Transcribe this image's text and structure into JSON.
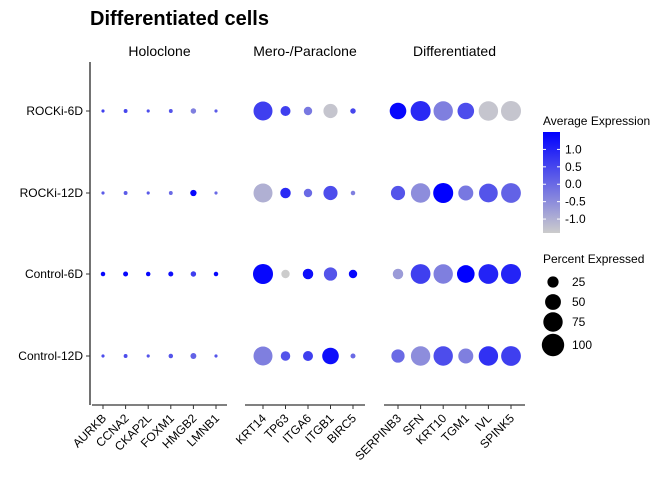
{
  "chart_data": {
    "type": "scatter",
    "title": "Differentiated cells",
    "rows": [
      "ROCKi-6D",
      "ROCKi-12D",
      "Control-6D",
      "Control-12D"
    ],
    "groups": [
      {
        "name": "Holoclone",
        "genes": [
          "AURKB",
          "CCNA2",
          "CKAP2L",
          "FOXM1",
          "HMGB2",
          "LMNB1"
        ]
      },
      {
        "name": "Mero-/Paraclone",
        "genes": [
          "KRT14",
          "TP63",
          "ITGA6",
          "ITGB1",
          "BIRC5"
        ]
      },
      {
        "name": "Differentiated",
        "genes": [
          "SERPINB3",
          "SFN",
          "KRT10",
          "TGM1",
          "IVL",
          "SPINK5"
        ]
      }
    ],
    "points": [
      {
        "row": "ROCKi-6D",
        "gene": "AURKB",
        "pct": 2,
        "avg": 0.6
      },
      {
        "row": "ROCKi-6D",
        "gene": "CCNA2",
        "pct": 3,
        "avg": 0.5
      },
      {
        "row": "ROCKi-6D",
        "gene": "CKAP2L",
        "pct": 2,
        "avg": 0.4
      },
      {
        "row": "ROCKi-6D",
        "gene": "FOXM1",
        "pct": 3,
        "avg": 0.3
      },
      {
        "row": "ROCKi-6D",
        "gene": "HMGB2",
        "pct": 6,
        "avg": -0.3
      },
      {
        "row": "ROCKi-6D",
        "gene": "LMNB1",
        "pct": 2,
        "avg": 0.2
      },
      {
        "row": "ROCKi-6D",
        "gene": "KRT14",
        "pct": 72,
        "avg": 0.6
      },
      {
        "row": "ROCKi-6D",
        "gene": "TP63",
        "pct": 20,
        "avg": 0.6
      },
      {
        "row": "ROCKi-6D",
        "gene": "ITGA6",
        "pct": 14,
        "avg": -0.2
      },
      {
        "row": "ROCKi-6D",
        "gene": "ITGB1",
        "pct": 40,
        "avg": -1.3
      },
      {
        "row": "ROCKi-6D",
        "gene": "BIRC5",
        "pct": 6,
        "avg": 0.5
      },
      {
        "row": "ROCKi-6D",
        "gene": "SERPINB3",
        "pct": 55,
        "avg": 1.4
      },
      {
        "row": "ROCKi-6D",
        "gene": "SFN",
        "pct": 80,
        "avg": 0.9
      },
      {
        "row": "ROCKi-6D",
        "gene": "KRT10",
        "pct": 75,
        "avg": -0.3
      },
      {
        "row": "ROCKi-6D",
        "gene": "TGM1",
        "pct": 55,
        "avg": 0.4
      },
      {
        "row": "ROCKi-6D",
        "gene": "IVL",
        "pct": 75,
        "avg": -1.3
      },
      {
        "row": "ROCKi-6D",
        "gene": "SPINK5",
        "pct": 80,
        "avg": -1.3
      },
      {
        "row": "ROCKi-12D",
        "gene": "AURKB",
        "pct": 2,
        "avg": 0.2
      },
      {
        "row": "ROCKi-12D",
        "gene": "CCNA2",
        "pct": 3,
        "avg": 0.2
      },
      {
        "row": "ROCKi-12D",
        "gene": "CKAP2L",
        "pct": 2,
        "avg": 0.2
      },
      {
        "row": "ROCKi-12D",
        "gene": "FOXM1",
        "pct": 3,
        "avg": 0.0
      },
      {
        "row": "ROCKi-12D",
        "gene": "HMGB2",
        "pct": 8,
        "avg": 1.4
      },
      {
        "row": "ROCKi-12D",
        "gene": "LMNB1",
        "pct": 2,
        "avg": 0.0
      },
      {
        "row": "ROCKi-12D",
        "gene": "KRT14",
        "pct": 72,
        "avg": -1.0
      },
      {
        "row": "ROCKi-12D",
        "gene": "TP63",
        "pct": 22,
        "avg": 0.9
      },
      {
        "row": "ROCKi-12D",
        "gene": "ITGA6",
        "pct": 14,
        "avg": 0.0
      },
      {
        "row": "ROCKi-12D",
        "gene": "ITGB1",
        "pct": 40,
        "avg": 0.4
      },
      {
        "row": "ROCKi-12D",
        "gene": "BIRC5",
        "pct": 4,
        "avg": -0.3
      },
      {
        "row": "ROCKi-12D",
        "gene": "SERPINB3",
        "pct": 40,
        "avg": 0.3
      },
      {
        "row": "ROCKi-12D",
        "gene": "SFN",
        "pct": 75,
        "avg": -0.5
      },
      {
        "row": "ROCKi-12D",
        "gene": "KRT10",
        "pct": 80,
        "avg": 1.5
      },
      {
        "row": "ROCKi-12D",
        "gene": "TGM1",
        "pct": 45,
        "avg": -0.2
      },
      {
        "row": "ROCKi-12D",
        "gene": "IVL",
        "pct": 70,
        "avg": 0.3
      },
      {
        "row": "ROCKi-12D",
        "gene": "SPINK5",
        "pct": 78,
        "avg": 0.1
      },
      {
        "row": "Control-6D",
        "gene": "AURKB",
        "pct": 4,
        "avg": 1.4
      },
      {
        "row": "Control-6D",
        "gene": "CCNA2",
        "pct": 5,
        "avg": 1.4
      },
      {
        "row": "Control-6D",
        "gene": "CKAP2L",
        "pct": 4,
        "avg": 1.4
      },
      {
        "row": "Control-6D",
        "gene": "FOXM1",
        "pct": 5,
        "avg": 1.3
      },
      {
        "row": "Control-6D",
        "gene": "HMGB2",
        "pct": 6,
        "avg": 0.6
      },
      {
        "row": "Control-6D",
        "gene": "LMNB1",
        "pct": 4,
        "avg": 1.4
      },
      {
        "row": "Control-6D",
        "gene": "KRT14",
        "pct": 80,
        "avg": 1.4
      },
      {
        "row": "Control-6D",
        "gene": "TP63",
        "pct": 14,
        "avg": -1.4
      },
      {
        "row": "Control-6D",
        "gene": "ITGA6",
        "pct": 22,
        "avg": 1.3
      },
      {
        "row": "Control-6D",
        "gene": "ITGB1",
        "pct": 35,
        "avg": 0.3
      },
      {
        "row": "Control-6D",
        "gene": "BIRC5",
        "pct": 14,
        "avg": 1.4
      },
      {
        "row": "Control-6D",
        "gene": "SERPINB3",
        "pct": 22,
        "avg": -0.7
      },
      {
        "row": "Control-6D",
        "gene": "SFN",
        "pct": 78,
        "avg": 0.6
      },
      {
        "row": "Control-6D",
        "gene": "KRT10",
        "pct": 75,
        "avg": -0.3
      },
      {
        "row": "Control-6D",
        "gene": "TGM1",
        "pct": 62,
        "avg": 1.5
      },
      {
        "row": "Control-6D",
        "gene": "IVL",
        "pct": 78,
        "avg": 1.0
      },
      {
        "row": "Control-6D",
        "gene": "SPINK5",
        "pct": 80,
        "avg": 1.0
      },
      {
        "row": "Control-12D",
        "gene": "AURKB",
        "pct": 2,
        "avg": 0.4
      },
      {
        "row": "Control-12D",
        "gene": "CCNA2",
        "pct": 3,
        "avg": 0.4
      },
      {
        "row": "Control-12D",
        "gene": "CKAP2L",
        "pct": 2,
        "avg": 0.3
      },
      {
        "row": "Control-12D",
        "gene": "FOXM1",
        "pct": 4,
        "avg": 0.3
      },
      {
        "row": "Control-12D",
        "gene": "HMGB2",
        "pct": 7,
        "avg": 0.1
      },
      {
        "row": "Control-12D",
        "gene": "LMNB1",
        "pct": 2,
        "avg": 0.3
      },
      {
        "row": "Control-12D",
        "gene": "KRT14",
        "pct": 72,
        "avg": -0.3
      },
      {
        "row": "Control-12D",
        "gene": "TP63",
        "pct": 18,
        "avg": 0.3
      },
      {
        "row": "Control-12D",
        "gene": "ITGA6",
        "pct": 20,
        "avg": 0.6
      },
      {
        "row": "Control-12D",
        "gene": "ITGB1",
        "pct": 55,
        "avg": 1.3
      },
      {
        "row": "Control-12D",
        "gene": "BIRC5",
        "pct": 5,
        "avg": 0.0
      },
      {
        "row": "Control-12D",
        "gene": "SERPINB3",
        "pct": 35,
        "avg": 0.0
      },
      {
        "row": "Control-12D",
        "gene": "SFN",
        "pct": 75,
        "avg": -0.5
      },
      {
        "row": "Control-12D",
        "gene": "KRT10",
        "pct": 75,
        "avg": 0.4
      },
      {
        "row": "Control-12D",
        "gene": "TGM1",
        "pct": 45,
        "avg": -0.3
      },
      {
        "row": "Control-12D",
        "gene": "IVL",
        "pct": 75,
        "avg": 0.8
      },
      {
        "row": "Control-12D",
        "gene": "SPINK5",
        "pct": 78,
        "avg": 0.6
      }
    ],
    "color_legend": {
      "title": "Average Expression",
      "range": [
        -1.4,
        1.5
      ],
      "ticks": [
        1.0,
        0.5,
        0.0,
        -0.5,
        -1.0
      ],
      "tick_labels": [
        "1.0",
        "0.5",
        "0.0",
        "-0.5",
        "-1.0"
      ],
      "low_color": "#cccccc",
      "high_color": "#0000ff"
    },
    "size_legend": {
      "title": "Percent Expressed",
      "values": [
        25,
        50,
        75,
        100
      ],
      "labels": [
        "25",
        "50",
        "75",
        "100"
      ]
    },
    "grid": false,
    "legend_position": "right"
  }
}
